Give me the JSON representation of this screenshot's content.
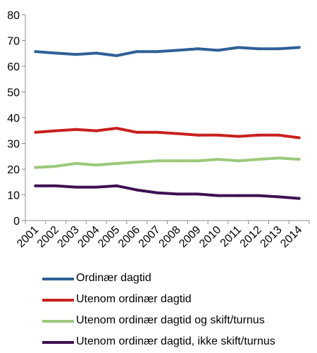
{
  "chart_data": {
    "type": "line",
    "x": [
      "2001",
      "2002",
      "2003",
      "2004",
      "2005",
      "2006",
      "2007",
      "2008",
      "2009",
      "2010",
      "2011",
      "2012",
      "2013",
      "2014"
    ],
    "ylim": [
      0,
      80
    ],
    "yticks": [
      0,
      10,
      20,
      30,
      40,
      50,
      60,
      70,
      80
    ],
    "grid": false,
    "legend_position": "bottom",
    "series": [
      {
        "name": "Ordinær dagtid",
        "color": "#2E6096",
        "values": [
          65.7,
          65.1,
          64.6,
          65.1,
          64.1,
          65.7,
          65.7,
          66.2,
          66.8,
          66.2,
          67.3,
          66.8,
          66.8,
          67.3
        ]
      },
      {
        "name": "Utenom ordinær dagtid",
        "color": "#C8201D",
        "values": [
          34.3,
          34.9,
          35.4,
          34.9,
          35.9,
          34.3,
          34.3,
          33.8,
          33.2,
          33.2,
          32.7,
          33.2,
          33.2,
          32.2
        ]
      },
      {
        "name": "Utenom ordinær dagtid og skift/turnus",
        "color": "#9BC97A",
        "values": [
          20.6,
          21.1,
          22.2,
          21.6,
          22.2,
          22.7,
          23.2,
          23.2,
          23.2,
          23.8,
          23.2,
          23.8,
          24.3,
          23.8
        ]
      },
      {
        "name": "Utenom ordinær dagtid, ikke skift/turnus",
        "color": "#3E1151",
        "values": [
          13.5,
          13.5,
          13.0,
          13.0,
          13.5,
          11.9,
          10.8,
          10.3,
          10.3,
          9.7,
          9.7,
          9.7,
          9.2,
          8.6
        ]
      }
    ]
  }
}
